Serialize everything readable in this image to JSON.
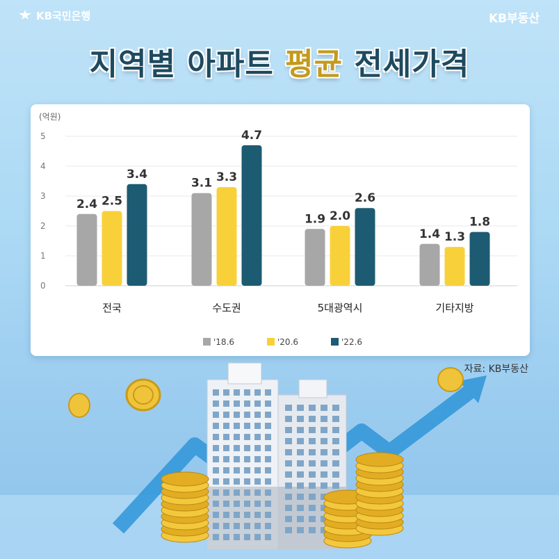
{
  "header": {
    "brand_left": "KB국민은행",
    "brand_right": "KB부동산",
    "title_part1": "지역별 아파트 ",
    "title_highlight": "평균",
    "title_part2": " 전세가격"
  },
  "source": "자료: KB부동산",
  "colors": {
    "series_2018": "#a7a7a7",
    "series_2020": "#f8d13a",
    "series_2022": "#1d5b72",
    "title": "#1e4a60",
    "highlight": "#c49a1c"
  },
  "chart_data": {
    "type": "bar",
    "unit_label": "(억원)",
    "categories": [
      "전국",
      "수도권",
      "5대광역시",
      "기타지방"
    ],
    "series": [
      {
        "name": "'18.6",
        "values": [
          2.4,
          3.1,
          1.9,
          1.4
        ]
      },
      {
        "name": "'20.6",
        "values": [
          2.5,
          3.3,
          2.0,
          1.3
        ]
      },
      {
        "name": "'22.6",
        "values": [
          3.4,
          4.7,
          2.6,
          1.8
        ]
      }
    ],
    "ylim": [
      0,
      5
    ],
    "yticks": [
      0,
      1,
      2,
      3,
      4,
      5
    ],
    "grid": true,
    "legend_position": "bottom"
  }
}
